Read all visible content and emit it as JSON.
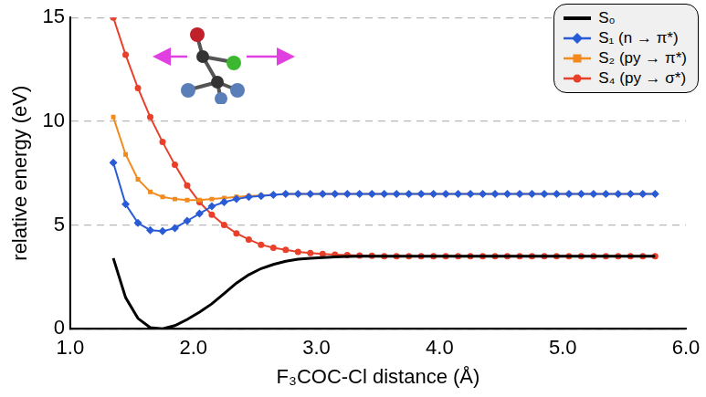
{
  "chart_data": {
    "type": "line",
    "x_label": "F₃COC-Cl distance (Å)",
    "y_label": "relative energy (eV)",
    "x": [
      1.35,
      1.45,
      1.55,
      1.65,
      1.75,
      1.85,
      1.95,
      2.05,
      2.15,
      2.25,
      2.35,
      2.45,
      2.55,
      2.65,
      2.75,
      2.85,
      2.95,
      3.05,
      3.15,
      3.25,
      3.35,
      3.45,
      3.55,
      3.65,
      3.75,
      3.85,
      3.95,
      4.05,
      4.15,
      4.25,
      4.35,
      4.45,
      4.55,
      4.65,
      4.75,
      4.85,
      4.95,
      5.05,
      5.15,
      5.25,
      5.35,
      5.45,
      5.55,
      5.65,
      5.75
    ],
    "series": [
      {
        "name": "S₀",
        "color": "#000000",
        "marker": "none",
        "values": [
          3.4,
          1.5,
          0.5,
          0.05,
          0,
          0.15,
          0.45,
          0.8,
          1.2,
          1.7,
          2.2,
          2.6,
          2.9,
          3.1,
          3.25,
          3.35,
          3.4,
          3.43,
          3.46,
          3.48,
          3.5,
          3.5,
          3.5,
          3.5,
          3.5,
          3.5,
          3.5,
          3.5,
          3.5,
          3.5,
          3.5,
          3.5,
          3.5,
          3.5,
          3.5,
          3.5,
          3.5,
          3.5,
          3.5,
          3.5,
          3.5,
          3.5,
          3.5,
          3.5,
          3.5
        ]
      },
      {
        "name": "S₁ (n → π*)",
        "color": "#2a5bd7",
        "marker": "diamond",
        "values": [
          8.0,
          6.0,
          5.1,
          4.75,
          4.7,
          4.85,
          5.2,
          5.55,
          5.9,
          6.1,
          6.25,
          6.35,
          6.4,
          6.45,
          6.5,
          6.5,
          6.5,
          6.5,
          6.5,
          6.5,
          6.5,
          6.5,
          6.5,
          6.5,
          6.5,
          6.5,
          6.5,
          6.5,
          6.5,
          6.5,
          6.5,
          6.5,
          6.5,
          6.5,
          6.5,
          6.5,
          6.5,
          6.5,
          6.5,
          6.5,
          6.5,
          6.5,
          6.5,
          6.5,
          6.5
        ]
      },
      {
        "name": "S₂ (py → π*)",
        "color": "#f28a1e",
        "marker": "square",
        "values": [
          10.2,
          8.4,
          7.2,
          6.6,
          6.35,
          6.25,
          6.2,
          6.2,
          6.25,
          6.3,
          6.35,
          6.4,
          6.42,
          6.45,
          6.5,
          6.5,
          6.5,
          6.5,
          6.5,
          6.5,
          6.5,
          6.5,
          6.5,
          6.5,
          6.5,
          6.5,
          6.5,
          6.5,
          6.5,
          6.5,
          6.5,
          6.5,
          6.5,
          6.5,
          6.5,
          6.5,
          6.5,
          6.5,
          6.5,
          6.5,
          6.5,
          6.5,
          6.5,
          6.5,
          6.5
        ]
      },
      {
        "name": "S₄ (py → σ*)",
        "color": "#e8402a",
        "marker": "circle",
        "values": [
          15,
          13.2,
          11.6,
          10.2,
          9,
          7.9,
          6.9,
          6.1,
          5.5,
          5,
          4.6,
          4.3,
          4.05,
          3.9,
          3.8,
          3.7,
          3.65,
          3.6,
          3.57,
          3.55,
          3.53,
          3.52,
          3.5,
          3.5,
          3.5,
          3.5,
          3.5,
          3.5,
          3.5,
          3.5,
          3.5,
          3.5,
          3.5,
          3.5,
          3.5,
          3.5,
          3.5,
          3.5,
          3.5,
          3.5,
          3.5,
          3.5,
          3.5,
          3.5,
          3.5
        ]
      }
    ],
    "xlim": [
      1,
      6
    ],
    "xticks": [
      {
        "value": 1,
        "label": "1.0"
      },
      {
        "value": 2,
        "label": "2.0"
      },
      {
        "value": 3,
        "label": "3.0"
      },
      {
        "value": 4,
        "label": "4.0"
      },
      {
        "value": 5,
        "label": "5.0"
      },
      {
        "value": 6,
        "label": "6.0"
      }
    ],
    "ylim": [
      0,
      15
    ],
    "yticks": [
      0,
      5,
      10,
      15
    ],
    "grid": "y",
    "legend": "upper right"
  }
}
